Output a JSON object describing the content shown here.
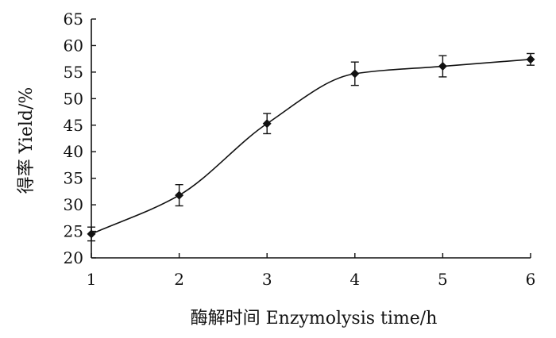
{
  "chart_data": {
    "type": "line",
    "xlabel": "酶解时间  Enzymolysis time/h",
    "ylabel": "得率 Yield/%",
    "xlim": [
      1,
      6
    ],
    "ylim": [
      20,
      65
    ],
    "x_ticks": [
      "1",
      "2",
      "3",
      "4",
      "5",
      "6"
    ],
    "y_ticks": [
      "20",
      "25",
      "30",
      "35",
      "40",
      "45",
      "50",
      "55",
      "60",
      "65"
    ],
    "grid": false,
    "marker": "diamond",
    "smooth": true,
    "series": [
      {
        "x": [
          1,
          2,
          3,
          4,
          5,
          6
        ],
        "values": [
          24.5,
          31.8,
          45.3,
          54.7,
          56.1,
          57.4
        ],
        "error": [
          1.3,
          2.0,
          1.9,
          2.2,
          2.0,
          1.1
        ]
      }
    ]
  }
}
